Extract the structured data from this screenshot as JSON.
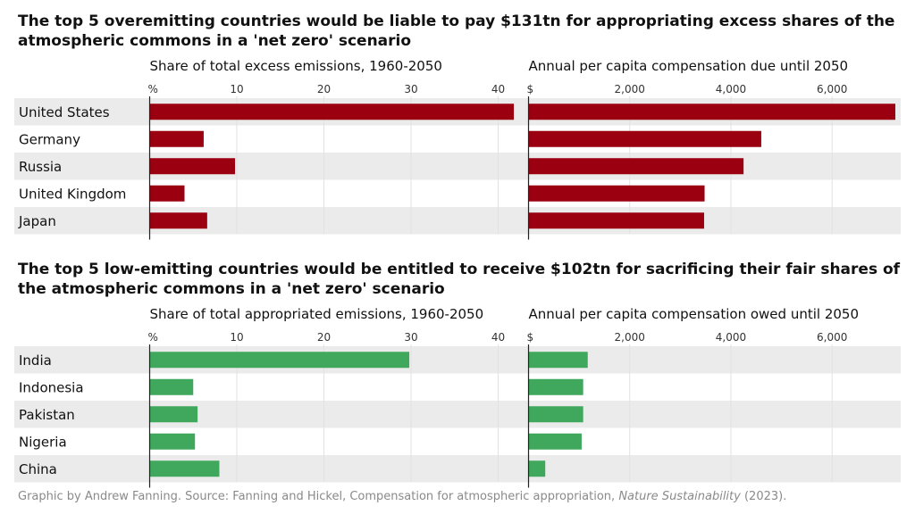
{
  "footer": {
    "prefix": "Graphic by Andrew Fanning. Source: Fanning and Hickel, Compensation for atmospheric appropriation, ",
    "journal": "Nature Sustainability",
    "suffix": " (2023)."
  },
  "colors": {
    "overemitting": "#9b0010",
    "low_emitting": "#3fa85c",
    "band": "#ebebeb",
    "grid": "#e2e2e2"
  },
  "chart_data": [
    {
      "type": "bar",
      "orientation": "horizontal",
      "title": "The top 5 overemitting countries would be liable to pay $131tn for appropriating excess shares of the atmospheric commons in a 'net zero' scenario",
      "categories": [
        "United States",
        "Germany",
        "Russia",
        "United Kingdom",
        "Japan"
      ],
      "panels": [
        {
          "subtitle": "Share of total excess emissions, 1960-2050",
          "unit_label": "%",
          "ticks": [
            10,
            20,
            30,
            40
          ],
          "xlim": [
            0,
            42
          ],
          "values": [
            41.8,
            6.2,
            9.8,
            4.0,
            6.6
          ]
        },
        {
          "subtitle": "Annual per capita compensation due until 2050",
          "unit_label": "$",
          "ticks": [
            2000,
            4000,
            6000
          ],
          "tick_labels": [
            "2,000",
            "4,000",
            "6,000"
          ],
          "xlim": [
            0,
            7250
          ],
          "values": [
            7250,
            4600,
            4250,
            3480,
            3470
          ]
        }
      ]
    },
    {
      "type": "bar",
      "orientation": "horizontal",
      "title": "The top 5 low-emitting countries would be entitled to receive $102tn for sacrificing their fair shares of the atmospheric commons in a 'net zero' scenario",
      "categories": [
        "India",
        "Indonesia",
        "Pakistan",
        "Nigeria",
        "China"
      ],
      "panels": [
        {
          "subtitle": "Share of total appropriated emissions, 1960-2050",
          "unit_label": "%",
          "ticks": [
            10,
            20,
            30,
            40
          ],
          "xlim": [
            0,
            42
          ],
          "values": [
            29.8,
            5.0,
            5.5,
            5.2,
            8.0
          ]
        },
        {
          "subtitle": "Annual per capita compensation owed until 2050",
          "unit_label": "$",
          "ticks": [
            2000,
            4000,
            6000
          ],
          "tick_labels": [
            "2,000",
            "4,000",
            "6,000"
          ],
          "xlim": [
            0,
            7250
          ],
          "values": [
            1170,
            1080,
            1080,
            1050,
            330
          ]
        }
      ]
    }
  ]
}
